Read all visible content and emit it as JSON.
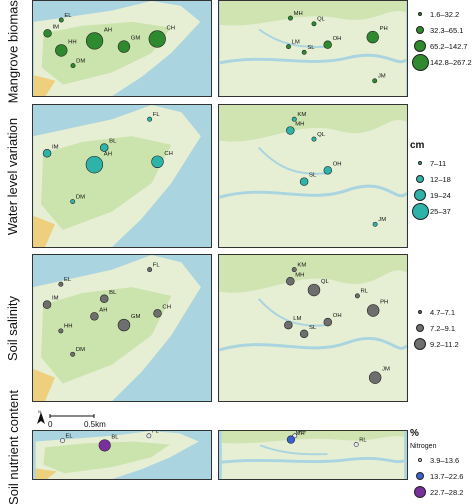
{
  "rows": [
    {
      "label": "Mangrove biomass",
      "left_sites": [
        {
          "code": "EL",
          "size": 1
        },
        {
          "code": "IM",
          "size": 2
        },
        {
          "code": "HH",
          "size": 3
        },
        {
          "code": "AH",
          "size": 4
        },
        {
          "code": "GM",
          "size": 3
        },
        {
          "code": "CH",
          "size": 4
        },
        {
          "code": "DM",
          "size": 1
        }
      ],
      "right_sites": [
        {
          "code": "MH",
          "size": 1
        },
        {
          "code": "QL",
          "size": 1
        },
        {
          "code": "LM",
          "size": 1
        },
        {
          "code": "SL",
          "size": 1
        },
        {
          "code": "OH",
          "size": 2
        },
        {
          "code": "PH",
          "size": 3
        },
        {
          "code": "JM",
          "size": 1
        }
      ],
      "legend": {
        "unit": "",
        "subtitle": "",
        "items": [
          {
            "label": "1.6–32.2"
          },
          {
            "label": "32.3–65.1"
          },
          {
            "label": "65.2–142.7"
          },
          {
            "label": "142.8–267.2"
          }
        ]
      }
    },
    {
      "label": "Water level variation",
      "left_sites": [
        {
          "code": "FL",
          "size": 1
        },
        {
          "code": "BL",
          "size": 2
        },
        {
          "code": "IM",
          "size": 2
        },
        {
          "code": "AH",
          "size": 4
        },
        {
          "code": "CH",
          "size": 3
        },
        {
          "code": "DM",
          "size": 1
        }
      ],
      "right_sites": [
        {
          "code": "KM",
          "size": 1
        },
        {
          "code": "MH",
          "size": 2
        },
        {
          "code": "QL",
          "size": 1
        },
        {
          "code": "SL",
          "size": 2
        },
        {
          "code": "OH",
          "size": 2
        },
        {
          "code": "JM",
          "size": 1
        }
      ],
      "legend": {
        "unit": "cm",
        "subtitle": "",
        "items": [
          {
            "label": "7–11"
          },
          {
            "label": "12–18"
          },
          {
            "label": "19–24"
          },
          {
            "label": "25–37"
          }
        ]
      }
    },
    {
      "label": "Soil salinity",
      "left_sites": [
        {
          "code": "FL",
          "size": 1
        },
        {
          "code": "BL",
          "size": 2
        },
        {
          "code": "EL",
          "size": 1
        },
        {
          "code": "IM",
          "size": 2
        },
        {
          "code": "HH",
          "size": 1
        },
        {
          "code": "AH",
          "size": 2
        },
        {
          "code": "GM",
          "size": 3
        },
        {
          "code": "CH",
          "size": 2
        },
        {
          "code": "DM",
          "size": 1
        }
      ],
      "right_sites": [
        {
          "code": "KM",
          "size": 1
        },
        {
          "code": "MH",
          "size": 2
        },
        {
          "code": "QL",
          "size": 3
        },
        {
          "code": "RL",
          "size": 1
        },
        {
          "code": "SL",
          "size": 2
        },
        {
          "code": "LM",
          "size": 2
        },
        {
          "code": "OH",
          "size": 2
        },
        {
          "code": "PH",
          "size": 3
        },
        {
          "code": "JM",
          "size": 3
        }
      ],
      "legend": {
        "unit": "",
        "subtitle": "",
        "items": [
          {
            "label": "4.7–7.1"
          },
          {
            "label": "7.2–9.1"
          },
          {
            "label": "9.2–11.2"
          }
        ]
      }
    },
    {
      "label": "Soil nutrient content",
      "left_sites": [
        {
          "code": "FL",
          "size": 1
        },
        {
          "code": "BL",
          "size": 3
        },
        {
          "code": "EL",
          "size": 1
        }
      ],
      "right_sites": [
        {
          "code": "KM",
          "size": 1
        },
        {
          "code": "MH",
          "size": 2
        },
        {
          "code": "RL",
          "size": 1
        }
      ],
      "legend": {
        "unit": "%",
        "subtitle": "Nitrogen",
        "items": [
          {
            "label": "3.9–13.6"
          },
          {
            "label": "13.7–22.6"
          },
          {
            "label": "22.7–28.2"
          }
        ]
      }
    }
  ],
  "scale_bar": {
    "zero": "0",
    "distance": "0.5km",
    "north": "N"
  },
  "colors": {
    "sea": "#a9d4e0",
    "land": "#e6efd4",
    "veg": "#c6e0a4",
    "mangrove_fill": "#2f8a2f",
    "water_fill": "#2db3a8",
    "salinity_fill": "#6e6e6e",
    "nutrient_fills": [
      "#eaeaf5",
      "#3a60d0",
      "#7a2f9e"
    ]
  }
}
